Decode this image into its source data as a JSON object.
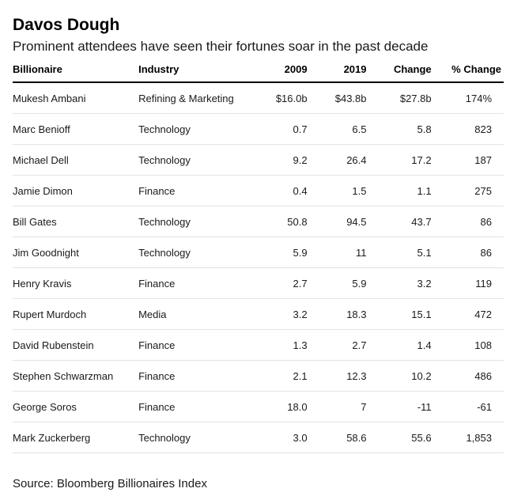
{
  "title": "Davos Dough",
  "subtitle": "Prominent attendees have seen their fortunes soar in the past decade",
  "source": "Source: Bloomberg Billionaires Index",
  "chart_data": {
    "type": "table",
    "columns": [
      "Billionaire",
      "Industry",
      "2009",
      "2019",
      "Change",
      "% Change"
    ],
    "rows": [
      [
        "Mukesh Ambani",
        "Refining & Marketing",
        "$16.0b",
        "$43.8b",
        "$27.8b",
        "174%"
      ],
      [
        "Marc Benioff",
        "Technology",
        "0.7",
        "6.5",
        "5.8",
        "823"
      ],
      [
        "Michael Dell",
        "Technology",
        "9.2",
        "26.4",
        "17.2",
        "187"
      ],
      [
        "Jamie Dimon",
        "Finance",
        "0.4",
        "1.5",
        "1.1",
        "275"
      ],
      [
        "Bill Gates",
        "Technology",
        "50.8",
        "94.5",
        "43.7",
        "86"
      ],
      [
        "Jim Goodnight",
        "Technology",
        "5.9",
        "11",
        "5.1",
        "86"
      ],
      [
        "Henry Kravis",
        "Finance",
        "2.7",
        "5.9",
        "3.2",
        "119"
      ],
      [
        "Rupert Murdoch",
        "Media",
        "3.2",
        "18.3",
        "15.1",
        "472"
      ],
      [
        "David Rubenstein",
        "Finance",
        "1.3",
        "2.7",
        "1.4",
        "108"
      ],
      [
        "Stephen Schwarzman",
        "Finance",
        "2.1",
        "12.3",
        "10.2",
        "486"
      ],
      [
        "George Soros",
        "Finance",
        "18.0",
        "7",
        "-11",
        "-61"
      ],
      [
        "Mark Zuckerberg",
        "Technology",
        "3.0",
        "58.6",
        "55.6",
        "1,853"
      ]
    ]
  }
}
